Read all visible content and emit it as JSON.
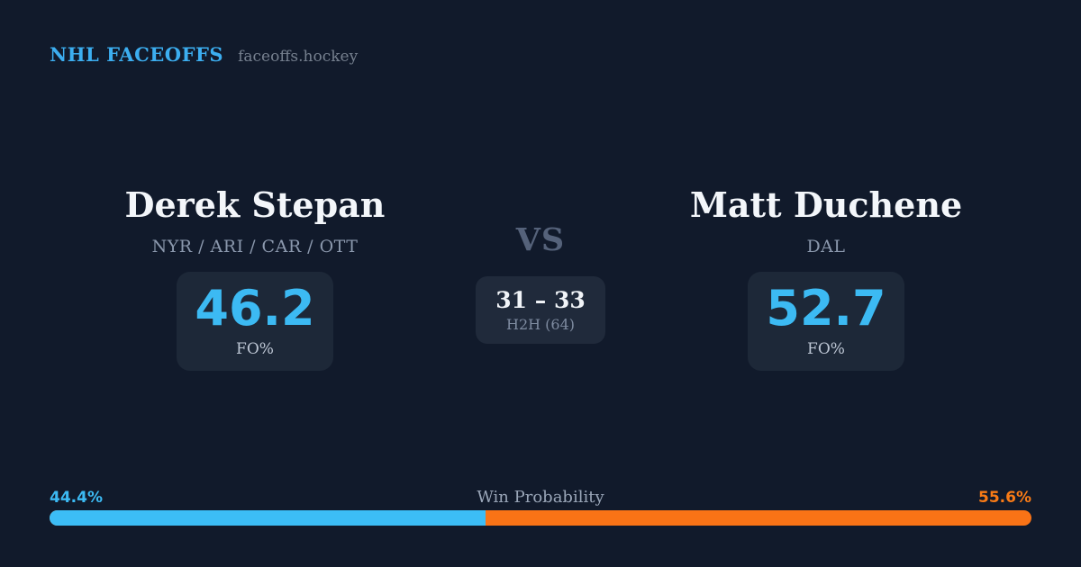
{
  "header": {
    "brand": "NHL FACEOFFS",
    "site": "faceoffs.hockey"
  },
  "matchup": {
    "player_left": {
      "name": "Derek Stepan",
      "teams": "NYR / ARI / CAR / OTT",
      "fo_pct": "46.2",
      "stat_label": "FO%"
    },
    "player_right": {
      "name": "Matt Duchene",
      "teams": "DAL",
      "fo_pct": "52.7",
      "stat_label": "FO%"
    },
    "vs_label": "VS",
    "h2h": {
      "score": "31 – 33",
      "label": "H2H (64)"
    }
  },
  "win_probability": {
    "title": "Win Probability",
    "left_pct_label": "44.4%",
    "right_pct_label": "55.6%",
    "left_value": 44.4,
    "right_value": 55.6
  },
  "colors": {
    "background": "#111A2B",
    "card_background": "#1D2838",
    "accent_blue": "#3CBAF3",
    "accent_orange": "#F97316",
    "text_primary": "#F3F6FA",
    "text_muted": "#8B98AD"
  }
}
